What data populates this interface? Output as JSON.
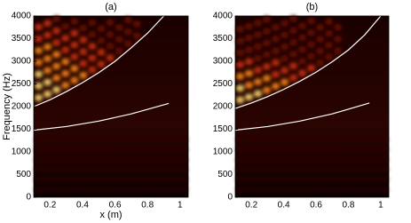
{
  "chart_data": [
    {
      "type": "line",
      "title": "(a)",
      "xlabel": "x (m)",
      "ylabel": "Frequency (Hz)",
      "xlim": [
        0.1,
        1.05
      ],
      "ylim": [
        0,
        4000
      ],
      "xticks": [
        0.2,
        0.4,
        0.6,
        0.8,
        {
          "value": 1,
          "label": "1"
        }
      ],
      "yticks": [
        0,
        500,
        1000,
        1500,
        2000,
        2500,
        3000,
        3500,
        4000
      ],
      "series": [
        {
          "color": "#ffffff",
          "x": [
            0.1,
            0.2,
            0.3,
            0.4,
            0.5,
            0.6,
            0.7,
            0.8,
            0.9
          ],
          "values": [
            2000,
            2150,
            2330,
            2530,
            2750,
            3000,
            3300,
            3620,
            4000
          ]
        },
        {
          "color": "#ffffff",
          "x": [
            0.1,
            0.3,
            0.5,
            0.7,
            0.93
          ],
          "values": [
            1480,
            1560,
            1680,
            1840,
            2070
          ]
        }
      ]
    },
    {
      "type": "line",
      "title": "(b)",
      "xlim": [
        0.1,
        1.05
      ],
      "ylim": [
        0,
        4000
      ],
      "xticks": [
        0.2,
        0.4,
        0.6,
        0.8,
        {
          "value": 1,
          "label": "1"
        }
      ],
      "yticks": [
        0,
        500,
        1000,
        1500,
        2000,
        2500,
        3000,
        3500,
        4000
      ],
      "series": [
        {
          "color": "#ffffff",
          "x": [
            0.1,
            0.2,
            0.3,
            0.4,
            0.5,
            0.6,
            0.7,
            0.8,
            0.9,
            1.0
          ],
          "values": [
            1960,
            2080,
            2220,
            2380,
            2560,
            2760,
            2990,
            3250,
            3580,
            4000
          ]
        },
        {
          "color": "#ffffff",
          "x": [
            0.1,
            0.3,
            0.5,
            0.7,
            0.93
          ],
          "values": [
            1480,
            1560,
            1680,
            1840,
            2080
          ]
        }
      ]
    }
  ]
}
